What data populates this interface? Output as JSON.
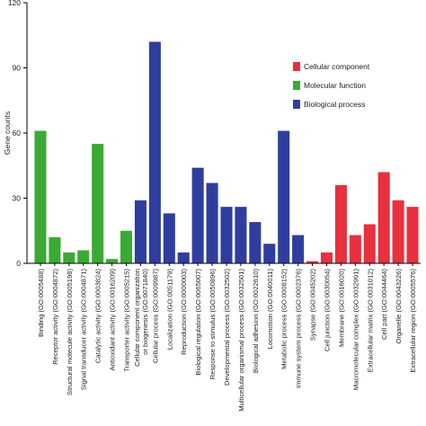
{
  "chart_data": {
    "type": "bar",
    "ylabel": "Gene counts",
    "ylim": [
      0,
      120
    ],
    "yticks": [
      "0",
      "30",
      "60",
      "90",
      "120"
    ],
    "grid": false,
    "legend_position": "top-right",
    "categories": [
      "Binding (GO:0005488)",
      "Receptor activity (GO:0004872)",
      "Structural molecule activity (GO:0005198)",
      "Signal transducer activity (GO:0004871)",
      "Catalytic activity (GO:0003824)",
      "Antioxidant activity (GO:0016209)",
      "Transporter activity (GO:0005215)",
      [
        "Cellular component organization",
        "or biogenesis (GO:0071840)"
      ],
      "Cellular process (GO:0009987)",
      "Localization (GO:0051179)",
      "Reproduction (GO:0000003)",
      "Biological regulation (GO:0065007)",
      "Response to stimulus (GO:0050896)",
      "Developmental process (GO:0032502)",
      "Multicellular organismal process (GO:0032501)",
      "Biological adhesion (GO:0022610)",
      "Locomotion (GO:0040011)",
      "Metabolic process (GO:0008152)",
      "Immune system process (GO:0002376)",
      "Synapse (GO:0045202)",
      "Cell junction (GO:0030054)",
      "Membrane (GO:0016020)",
      "Macromolecular complex (GO:0032991)",
      "Extracellular matrix (GO:0031012)",
      "Cell part (GO:0044464)",
      "Organelle (GO:0043226)",
      "Extracellular region (GO:0005576)"
    ],
    "values": [
      61,
      12,
      5,
      6,
      55,
      2,
      15,
      29,
      102,
      23,
      5,
      44,
      37,
      26,
      26,
      19,
      9,
      61,
      13,
      1,
      5,
      36,
      13,
      18,
      42,
      29,
      26
    ],
    "groups": [
      "mf",
      "mf",
      "mf",
      "mf",
      "mf",
      "mf",
      "mf",
      "bp",
      "bp",
      "bp",
      "bp",
      "bp",
      "bp",
      "bp",
      "bp",
      "bp",
      "bp",
      "bp",
      "bp",
      "cc",
      "cc",
      "cc",
      "cc",
      "cc",
      "cc",
      "cc",
      "cc"
    ],
    "series": [
      {
        "key": "cc",
        "name": "Cellular component",
        "color": "#e8303f"
      },
      {
        "key": "mf",
        "name": "Molecular function",
        "color": "#3aaa35"
      },
      {
        "key": "bp",
        "name": "Biological process",
        "color": "#2f3e9e"
      }
    ]
  }
}
